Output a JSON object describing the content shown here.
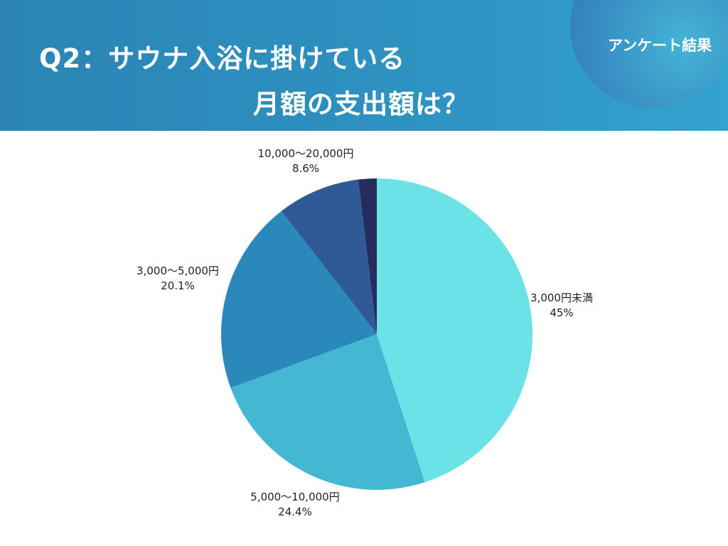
{
  "header": {
    "title_line1": "Q2：サウナ入浴に掛けている",
    "title_line2": "月額の支出額は？",
    "badge": "アンケート結果"
  },
  "colors": {
    "header_bg": "#2e8fc0",
    "title_text": "#ffffff",
    "label_text": "#222222"
  },
  "chart_data": {
    "type": "pie",
    "title": "Q2：サウナ入浴に掛けている月額の支出額は？",
    "slices": [
      {
        "label": "3,000円未満",
        "value_label": "45%",
        "value": 45.0,
        "color": "#6be3e6"
      },
      {
        "label": "5,000〜10,000円",
        "value_label": "24.4%",
        "value": 24.4,
        "color": "#44b7d3"
      },
      {
        "label": "3,000〜5,000円",
        "value_label": "20.1%",
        "value": 20.1,
        "color": "#2b88bb"
      },
      {
        "label": "10,000〜20,000円",
        "value_label": "8.6%",
        "value": 8.6,
        "color": "#2f5a95"
      },
      {
        "label": "",
        "value_label": "",
        "value": 1.9,
        "color": "#262d5e"
      }
    ],
    "start_angle": "12 o'clock",
    "direction": "clockwise",
    "legend": "none"
  }
}
